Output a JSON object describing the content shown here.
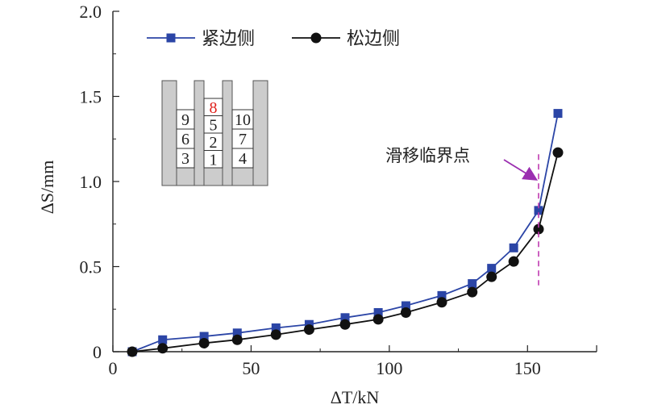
{
  "chart_data": {
    "type": "line",
    "xlabel": "ΔT/kN",
    "ylabel": "ΔS/mm",
    "xlim": [
      0,
      175
    ],
    "ylim": [
      0,
      2.0
    ],
    "x_ticks": [
      0,
      50,
      100,
      150
    ],
    "y_ticks": [
      0,
      0.5,
      1.0,
      1.5,
      2.0
    ],
    "x_tick_labels": [
      "0",
      "50",
      "100",
      "150"
    ],
    "y_tick_labels": [
      "0",
      "0.5",
      "1.0",
      "1.5",
      "2.0"
    ],
    "grid": false,
    "legend_position": "top-left",
    "series": [
      {
        "name": "紧边侧",
        "color": "#2b45a6",
        "marker": "square",
        "points": [
          [
            7,
            0.0
          ],
          [
            18,
            0.07
          ],
          [
            33,
            0.09
          ],
          [
            45,
            0.11
          ],
          [
            59,
            0.14
          ],
          [
            71,
            0.16
          ],
          [
            84,
            0.2
          ],
          [
            96,
            0.23
          ],
          [
            106,
            0.27
          ],
          [
            119,
            0.33
          ],
          [
            130,
            0.4
          ],
          [
            137,
            0.49
          ],
          [
            145,
            0.61
          ],
          [
            154,
            0.83
          ],
          [
            161,
            1.4
          ]
        ]
      },
      {
        "name": "松边侧",
        "color": "#111111",
        "marker": "circle",
        "points": [
          [
            7,
            0.0
          ],
          [
            18,
            0.02
          ],
          [
            33,
            0.05
          ],
          [
            45,
            0.07
          ],
          [
            59,
            0.1
          ],
          [
            71,
            0.13
          ],
          [
            84,
            0.16
          ],
          [
            96,
            0.19
          ],
          [
            106,
            0.23
          ],
          [
            119,
            0.29
          ],
          [
            130,
            0.35
          ],
          [
            137,
            0.44
          ],
          [
            145,
            0.53
          ],
          [
            154,
            0.72
          ],
          [
            161,
            1.17
          ]
        ]
      }
    ],
    "annotation": {
      "text": "滑移临界点",
      "x": 154,
      "line_range": [
        0.39,
        1.16
      ],
      "line_color": "#c03ab0",
      "arrow_color": "#9b2fb0"
    },
    "inset": {
      "column_1": [
        "9",
        "6",
        "3"
      ],
      "column_2": [
        "8",
        "5",
        "2",
        "1"
      ],
      "column_3": [
        "10",
        "7",
        "4"
      ],
      "highlight_label": "8",
      "highlight_color": "#e0201b",
      "fill_color": "#cccccc"
    }
  }
}
